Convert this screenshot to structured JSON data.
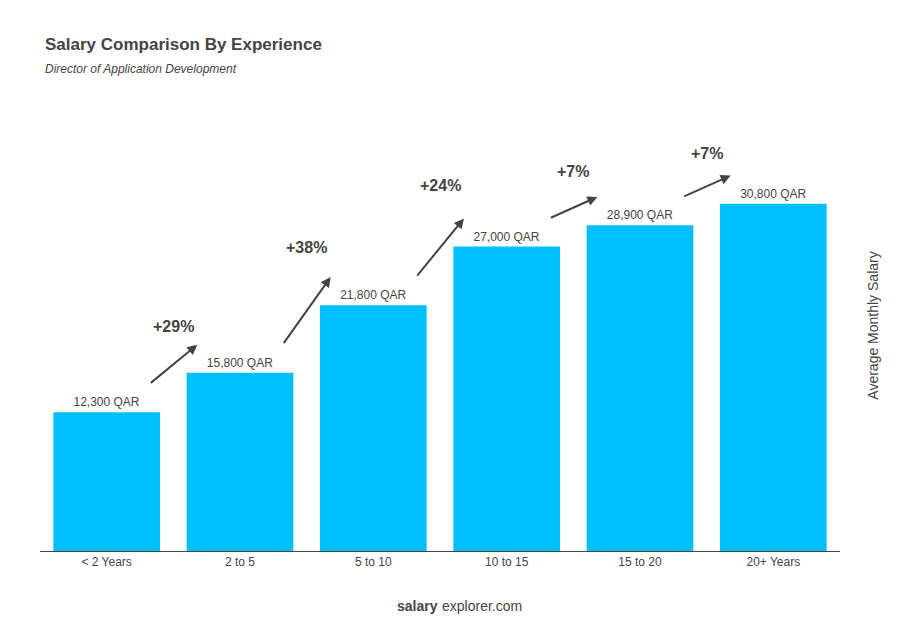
{
  "chart_data": {
    "type": "bar",
    "title": "Salary Comparison By Experience",
    "subtitle": "Director of Application Development",
    "ylabel": "Average Monthly Salary",
    "categories": [
      "< 2 Years",
      "2 to 5",
      "5 to 10",
      "10 to 15",
      "15 to 20",
      "20+ Years"
    ],
    "values": [
      12300,
      15800,
      21800,
      27000,
      28900,
      30800
    ],
    "value_labels": [
      "12,300 QAR",
      "15,800 QAR",
      "21,800 QAR",
      "27,000 QAR",
      "28,900 QAR",
      "30,800 QAR"
    ],
    "data_labels": true,
    "color": "#00BFFF",
    "annotations": [
      "+29%",
      "+38%",
      "+24%",
      "+7%",
      "+7%"
    ],
    "watermark": [
      "salary",
      "explorer.com"
    ],
    "ylim": [
      0,
      40000
    ],
    "tick_labels": "x",
    "grid": false
  }
}
